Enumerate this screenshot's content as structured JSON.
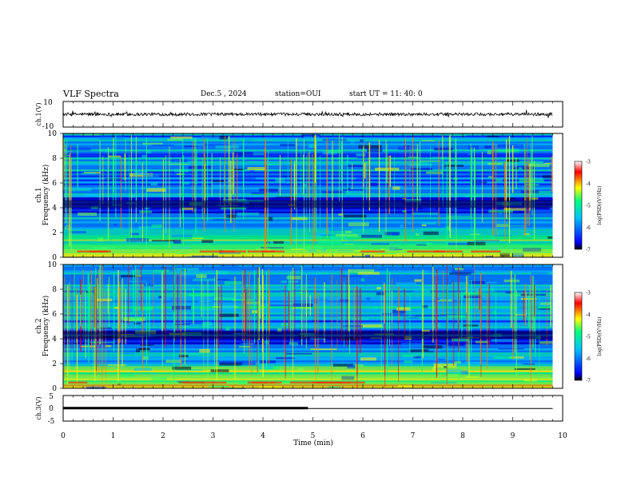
{
  "header": {
    "title": "VLF Spectra",
    "date": "Dec.5 , 2024",
    "station": "station=OUI",
    "start": "start UT = 11: 40: 0"
  },
  "chart_data": [
    {
      "type": "line",
      "panel": "ch1-waveform",
      "ylabel": "ch.1(V)",
      "ylim": [
        -10,
        10
      ],
      "yticks": [
        "10",
        "-10"
      ],
      "xlim": [
        0,
        10
      ],
      "x_extent": [
        0,
        9.8
      ],
      "baseline": 0,
      "amplitude": 0.6,
      "color": "#000000"
    },
    {
      "type": "heatmap",
      "panel": "ch1-spectrogram",
      "ylabel": "ch.1\nFrequency (kHz)",
      "ylim": [
        0,
        10
      ],
      "yticks": [
        "0",
        "2",
        "4",
        "6",
        "8",
        "10"
      ],
      "xlim": [
        0,
        10
      ],
      "x_extent": [
        0,
        9.8
      ],
      "colorbar": {
        "label": "log(PSD)(V²/Hz)",
        "range": [
          -7,
          -3
        ],
        "ticks": [
          "-3",
          "-4",
          "-5",
          "-6",
          "-7"
        ],
        "colors": [
          "#000000",
          "#0000ff",
          "#00c0ff",
          "#00ff80",
          "#ffff00",
          "#ff0000",
          "#ffffff"
        ]
      }
    },
    {
      "type": "heatmap",
      "panel": "ch2-spectrogram",
      "ylabel": "ch.2\nFrequency (kHz)",
      "ylim": [
        0,
        10
      ],
      "yticks": [
        "0",
        "2",
        "4",
        "6",
        "8",
        "10"
      ],
      "xlim": [
        0,
        10
      ],
      "x_extent": [
        0,
        9.8
      ],
      "colorbar": {
        "label": "log(PSD)(V²/Hz)",
        "range": [
          -7,
          -3
        ],
        "ticks": [
          "-3",
          "-4",
          "-5",
          "-6",
          "-7"
        ],
        "colors": [
          "#000000",
          "#0000ff",
          "#00c0ff",
          "#00ff80",
          "#ffff00",
          "#ff0000",
          "#ffffff"
        ]
      }
    },
    {
      "type": "line",
      "panel": "ch3-level",
      "ylabel": "ch.3(V)",
      "ylim": [
        -5,
        5
      ],
      "yticks": [
        "5",
        "0",
        "-5"
      ],
      "xlim": [
        0,
        10
      ],
      "series": [
        {
          "x": [
            0,
            4.9
          ],
          "y": [
            0.05,
            0.05
          ],
          "width": "thick"
        },
        {
          "x": [
            4.9,
            9.8
          ],
          "y": [
            -0.1,
            -0.1
          ],
          "width": "thin"
        }
      ]
    }
  ],
  "xaxis": {
    "label": "Time (min)",
    "ticks": [
      "0",
      "1",
      "2",
      "3",
      "4",
      "5",
      "6",
      "7",
      "8",
      "9",
      "10"
    ]
  }
}
